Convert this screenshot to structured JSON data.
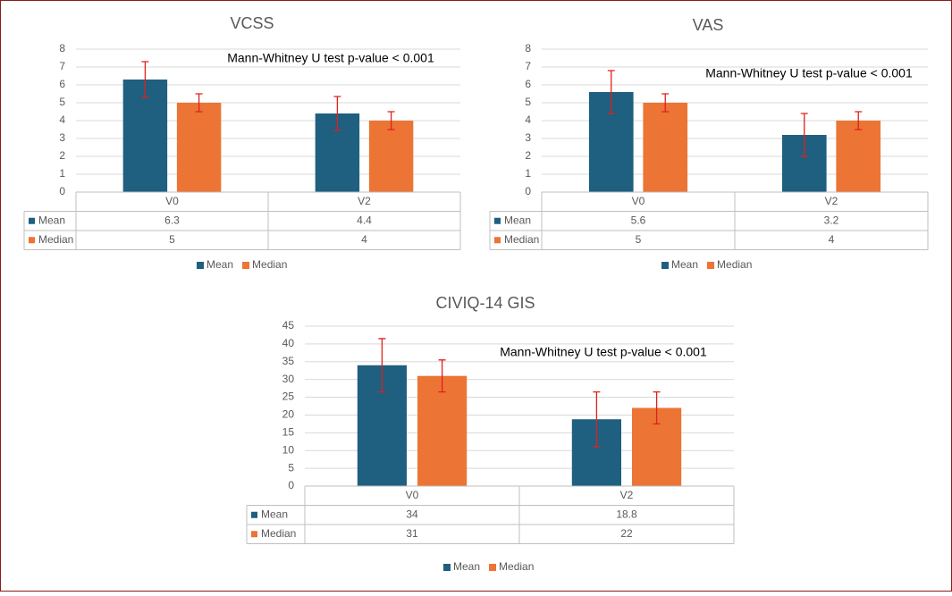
{
  "chart_data": [
    {
      "type": "bar",
      "title": "VCSS",
      "annotation": "Mann-Whitney U test p-value < 0.001",
      "categories": [
        "V0",
        "V2"
      ],
      "series": [
        {
          "name": "Mean",
          "color": "#1f5f80",
          "values": [
            6.3,
            4.4
          ],
          "errors": [
            1.0,
            0.95
          ]
        },
        {
          "name": "Median",
          "color": "#ec7434",
          "values": [
            5,
            4
          ],
          "errors": [
            0.5,
            0.5
          ]
        }
      ],
      "error_color": "#e0201c",
      "ylim": [
        0,
        8
      ],
      "yticks": [
        0,
        1,
        2,
        3,
        4,
        5,
        6,
        7,
        8
      ],
      "grid": true,
      "data_table": true,
      "legend": "bottom"
    },
    {
      "type": "bar",
      "title": "VAS",
      "annotation": "Mann-Whitney U test p-value < 0.001",
      "categories": [
        "V0",
        "V2"
      ],
      "series": [
        {
          "name": "Mean",
          "color": "#1f5f80",
          "values": [
            5.6,
            3.2
          ],
          "errors": [
            1.2,
            1.2
          ]
        },
        {
          "name": "Median",
          "color": "#ec7434",
          "values": [
            5,
            4
          ],
          "errors": [
            0.5,
            0.5
          ]
        }
      ],
      "error_color": "#e0201c",
      "ylim": [
        0,
        8
      ],
      "yticks": [
        0,
        1,
        2,
        3,
        4,
        5,
        6,
        7,
        8
      ],
      "grid": true,
      "data_table": true,
      "legend": "bottom"
    },
    {
      "type": "bar",
      "title": "CIVIQ-14 GIS",
      "annotation": "Mann-Whitney U test p-value < 0.001",
      "categories": [
        "V0",
        "V2"
      ],
      "series": [
        {
          "name": "Mean",
          "color": "#1f5f80",
          "values": [
            34,
            18.8
          ],
          "errors": [
            7.5,
            7.7
          ]
        },
        {
          "name": "Median",
          "color": "#ec7434",
          "values": [
            31,
            22
          ],
          "errors": [
            4.5,
            4.5
          ]
        }
      ],
      "error_color": "#e0201c",
      "ylim": [
        0,
        45
      ],
      "yticks": [
        0,
        5,
        10,
        15,
        20,
        25,
        30,
        35,
        40,
        45
      ],
      "grid": true,
      "data_table": true,
      "legend": "bottom"
    }
  ]
}
